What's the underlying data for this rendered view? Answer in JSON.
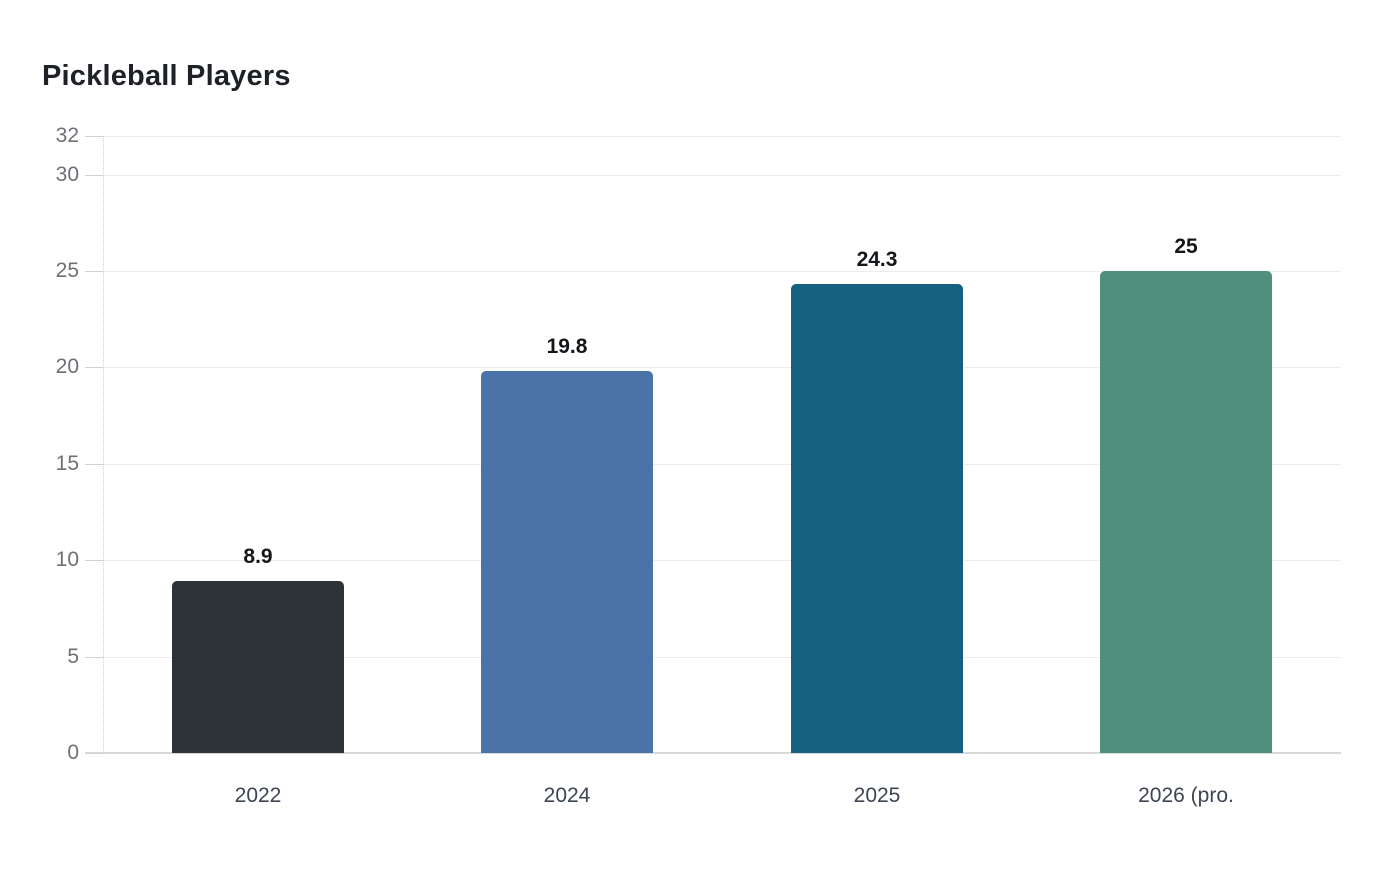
{
  "chart_data": {
    "type": "bar",
    "title": "Pickleball Players",
    "categories": [
      "2022",
      "2024",
      "2025",
      "2026 (pro."
    ],
    "values": [
      8.9,
      19.8,
      24.3,
      25
    ],
    "value_labels": [
      "8.9",
      "19.8",
      "24.3",
      "25"
    ],
    "bar_colors": [
      "#2d3338",
      "#4b73a9",
      "#15617f",
      "#4f8f7c"
    ],
    "yticks": [
      0,
      5,
      10,
      15,
      20,
      25,
      30,
      32
    ],
    "ylim": [
      0,
      32
    ],
    "xlabel": "",
    "ylabel": "",
    "grid": true,
    "legend_position": "none",
    "colors": {
      "background": "#ffffff",
      "grid_line": "#ededed",
      "zero_line": "#d9d9d9",
      "axis_dotted": "#d0d0d0",
      "tick_notch": "#d2d2d2",
      "y_tick_label": "#6d7175",
      "x_category_label": "#3d4650",
      "value_label": "#14171a",
      "title": "#1e2227"
    }
  }
}
